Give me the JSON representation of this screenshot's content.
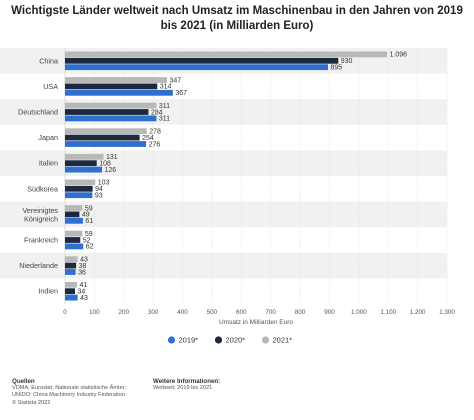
{
  "chart_data": {
    "type": "bar",
    "orientation": "horizontal",
    "title": "Wichtigste Länder weltweit nach Umsatz im Maschinenbau in den Jahren von 2019 bis 2021 (in Milliarden Euro)",
    "xlabel": "Umsatz in Milliarden Euro",
    "ylabel": "",
    "xlim": [
      0,
      1300
    ],
    "xticks": [
      0,
      100,
      200,
      300,
      400,
      500,
      600,
      700,
      800,
      900,
      1000,
      1100,
      1200,
      1300
    ],
    "xtick_labels": [
      "0",
      "100",
      "200",
      "300",
      "400",
      "500",
      "600",
      "700",
      "800",
      "900",
      "1.000",
      "1.100",
      "1.200",
      "1.300"
    ],
    "grid": true,
    "legend_position": "bottom-center",
    "categories": [
      "China",
      "USA",
      "Deutschland",
      "Japan",
      "Italien",
      "Südkorea",
      "Vereinigtes Königreich",
      "Frankreich",
      "Niederlande",
      "Indien"
    ],
    "series": [
      {
        "name": "2021*",
        "color": "#b8b8b8",
        "values": [
          1096,
          347,
          311,
          278,
          131,
          103,
          59,
          59,
          43,
          41
        ],
        "labels": [
          "1.096",
          "347",
          "311",
          "278",
          "131",
          "103",
          "59",
          "59",
          "43",
          "41"
        ]
      },
      {
        "name": "2020*",
        "color": "#1b2a3f",
        "values": [
          930,
          314,
          284,
          254,
          108,
          94,
          49,
          52,
          38,
          34
        ],
        "labels": [
          "930",
          "314",
          "284",
          "254",
          "108",
          "94",
          "49",
          "52",
          "38",
          "34"
        ]
      },
      {
        "name": "2019*",
        "color": "#2f6fd0",
        "values": [
          895,
          367,
          311,
          276,
          126,
          93,
          61,
          62,
          36,
          43
        ],
        "labels": [
          "895",
          "367",
          "311",
          "276",
          "126",
          "93",
          "61",
          "62",
          "36",
          "43"
        ]
      }
    ],
    "legend_order": [
      "2019*",
      "2020*",
      "2021*"
    ]
  },
  "footer": {
    "sources_heading": "Quellen",
    "sources_lines": [
      "VDMA; Eurostat; Nationale statistische Ämter;",
      "UNIDO; China Machinery Industry Federation",
      "© Statista 2022"
    ],
    "info_heading": "Weitere Informationen:",
    "info_lines": [
      "Weltweit; 2019 bis 2021"
    ]
  }
}
